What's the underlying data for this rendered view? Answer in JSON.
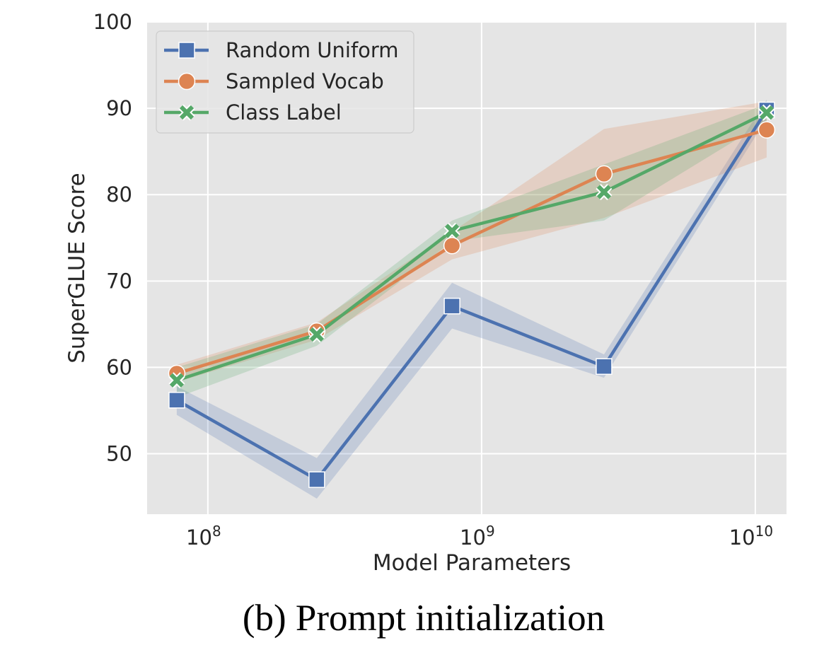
{
  "caption": "(b) Prompt initialization",
  "chart_data": {
    "type": "line",
    "xlabel": "Model Parameters",
    "ylabel": "SuperGLUE Score",
    "xscale": "log",
    "xlim": [
      60000000,
      13000000000
    ],
    "ylim": [
      43,
      100
    ],
    "x": [
      77000000,
      250000000,
      780000000,
      2800000000,
      11000000000
    ],
    "x_ticks": [
      {
        "value": 100000000,
        "base": "10",
        "exp": "8"
      },
      {
        "value": 1000000000,
        "base": "10",
        "exp": "9"
      },
      {
        "value": 10000000000,
        "base": "10",
        "exp": "10"
      }
    ],
    "y_ticks": [
      50,
      60,
      70,
      80,
      90,
      100
    ],
    "grid": true,
    "legend_position": "top-left",
    "series": [
      {
        "name": "Random Uniform",
        "color": "#4c72b0",
        "marker": "square",
        "values": [
          56.2,
          47.0,
          67.1,
          60.1,
          89.8
        ],
        "band_low": [
          54.5,
          44.8,
          64.5,
          58.8,
          88.8
        ],
        "band_high": [
          57.8,
          49.5,
          69.8,
          61.5,
          91.0
        ]
      },
      {
        "name": "Sampled Vocab",
        "color": "#dd8452",
        "marker": "circle",
        "values": [
          59.3,
          64.2,
          74.1,
          82.4,
          87.5
        ],
        "band_low": [
          58.3,
          63.2,
          72.5,
          77.3,
          84.3
        ],
        "band_high": [
          60.3,
          65.2,
          75.7,
          87.6,
          90.8
        ]
      },
      {
        "name": "Class Label",
        "color": "#55a868",
        "marker": "x",
        "values": [
          58.5,
          63.8,
          75.8,
          80.3,
          89.5
        ],
        "band_low": [
          56.5,
          62.5,
          74.6,
          77.0,
          88.5
        ],
        "band_high": [
          60.0,
          65.0,
          77.0,
          83.5,
          90.5
        ]
      }
    ]
  }
}
